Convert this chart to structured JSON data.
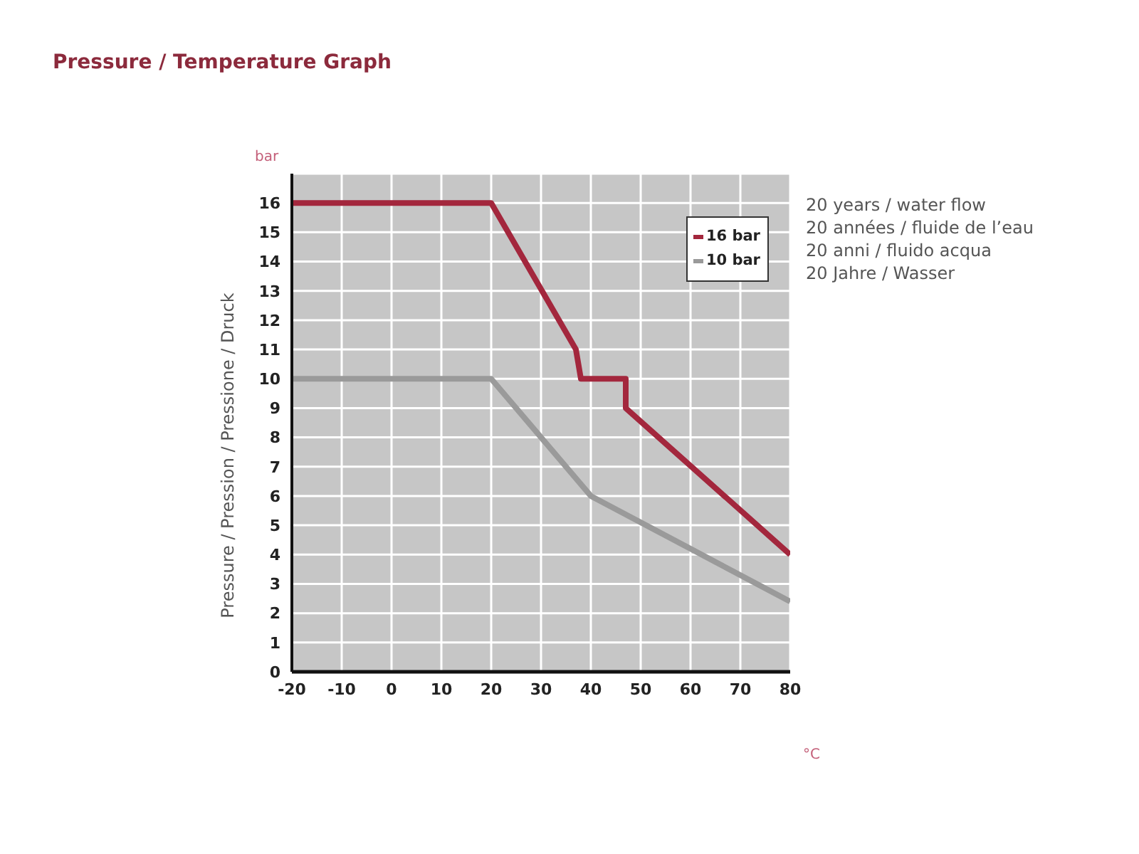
{
  "chart_data": {
    "type": "line",
    "title": "Pressure / Temperature Graph",
    "xlabel": "°C",
    "ylabel": "Pressure / Pression / Pressione / Druck",
    "annotations": [
      "bar",
      "20 years / water flow",
      "20 années / fluide de l’eau",
      "20 anni / fluido acqua",
      "20 Jahre / Wasser"
    ],
    "series": [
      {
        "name": "16 bar",
        "color": "#a3273d",
        "x": [
          -20,
          20,
          37,
          38,
          47,
          47,
          80
        ],
        "values": [
          16,
          16,
          11,
          10,
          10,
          9,
          4
        ]
      },
      {
        "name": "10 bar",
        "color": "#9a9a9a",
        "x": [
          -20,
          20,
          40,
          80
        ],
        "values": [
          10,
          10,
          6,
          2.4
        ]
      }
    ],
    "xlim": [
      -20,
      80
    ],
    "xticks": [
      -20,
      -10,
      0,
      10,
      20,
      30,
      40,
      50,
      60,
      70,
      80
    ],
    "ylim": [
      0,
      17
    ],
    "yticks": [
      0,
      1,
      2,
      3,
      4,
      5,
      6,
      7,
      8,
      9,
      10,
      11,
      12,
      13,
      14,
      15,
      16
    ],
    "grid": true,
    "legend": "top right"
  }
}
